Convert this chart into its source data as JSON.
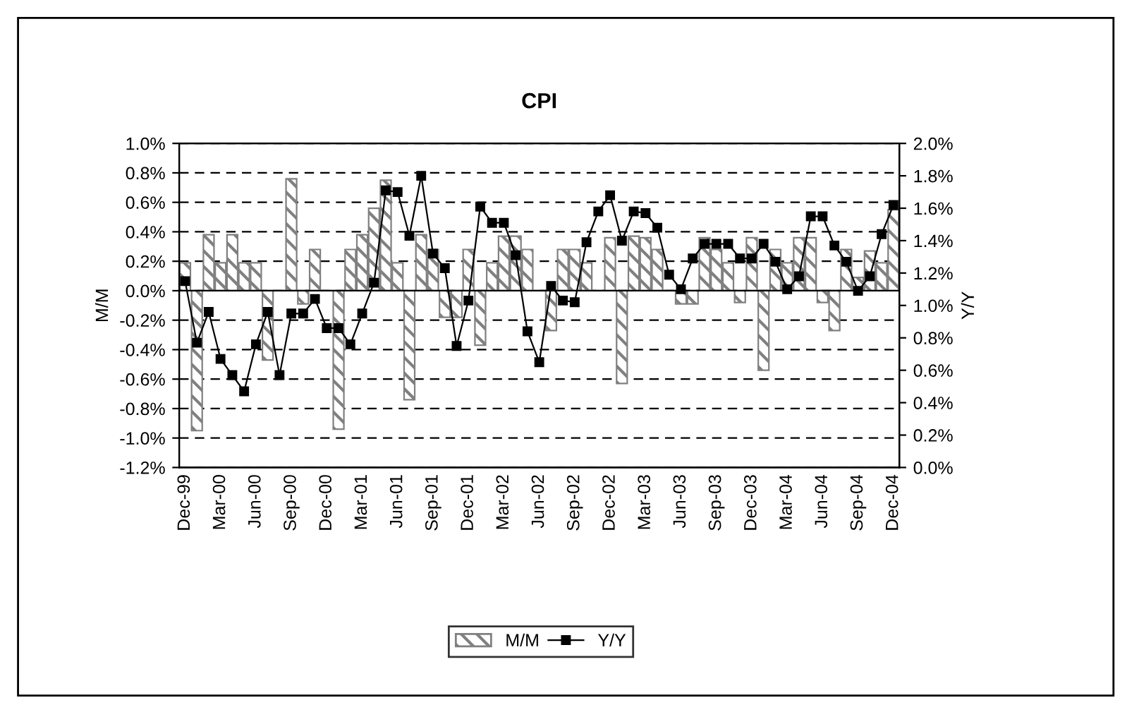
{
  "chart_data": {
    "type": "bar",
    "title": "CPI",
    "ylabel": "M/M",
    "y2label": "Y/Y",
    "categories": [
      "Dec-99",
      null,
      null,
      "Mar-00",
      null,
      null,
      "Jun-00",
      null,
      null,
      "Sep-00",
      null,
      null,
      "Dec-00",
      null,
      null,
      "Mar-01",
      null,
      null,
      "Jun-01",
      null,
      null,
      "Sep-01",
      null,
      null,
      "Dec-01",
      null,
      null,
      "Mar-02",
      null,
      null,
      "Jun-02",
      null,
      null,
      "Sep-02",
      null,
      null,
      "Dec-02",
      null,
      null,
      "Mar-03",
      null,
      null,
      "Jun-03",
      null,
      null,
      "Sep-03",
      null,
      null,
      "Dec-03",
      null,
      null,
      "Mar-04",
      null,
      null,
      "Jun-04",
      null,
      null,
      "Sep-04",
      null,
      null,
      "Dec-04"
    ],
    "series": [
      {
        "name": "M/M",
        "color": "#808080",
        "values": [
          0.19,
          -0.95,
          0.38,
          0.19,
          0.38,
          0.19,
          0.19,
          -0.47,
          0,
          0.76,
          -0.09,
          0.28,
          0,
          -0.94,
          0.28,
          0.38,
          0.56,
          0.75,
          0.19,
          -0.74,
          0.38,
          0.28,
          -0.18,
          -0.18,
          0.28,
          -0.37,
          0.19,
          0.37,
          0.37,
          0.28,
          0,
          -0.27,
          0.28,
          0.28,
          0.19,
          0,
          0.36,
          -0.63,
          0.37,
          0.36,
          0.28,
          0,
          -0.09,
          -0.09,
          0.36,
          0.28,
          0.19,
          -0.08,
          0.36,
          -0.54,
          0.28,
          0.19,
          0.36,
          0.36,
          -0.08,
          -0.27,
          0.28,
          0.09,
          0.27,
          0.19,
          0.55
        ]
      },
      {
        "name": "Y/Y",
        "type": "line",
        "axis": "y2",
        "color": "#000000",
        "marker": "square",
        "line_style": "solid",
        "values": [
          1.15,
          0.77,
          0.96,
          0.67,
          0.57,
          0.47,
          0.76,
          0.96,
          0.57,
          0.95,
          0.95,
          1.04,
          0.86,
          0.86,
          0.76,
          0.95,
          1.14,
          1.71,
          1.7,
          1.43,
          1.8,
          1.32,
          1.23,
          0.75,
          1.03,
          1.61,
          1.51,
          1.51,
          1.31,
          0.84,
          0.65,
          1.12,
          1.03,
          1.02,
          1.39,
          1.58,
          1.68,
          1.4,
          1.58,
          1.57,
          1.48,
          1.19,
          1.1,
          1.29,
          1.38,
          1.38,
          1.38,
          1.29,
          1.29,
          1.38,
          1.27,
          1.1,
          1.18,
          1.55,
          1.55,
          1.37,
          1.27,
          1.09,
          1.18,
          1.44,
          1.62
        ]
      }
    ],
    "ylim": [
      -1.2,
      1.0
    ],
    "yticks": [
      {
        "value": -1.2,
        "label": "-1.2%"
      },
      {
        "value": -1.0,
        "label": "-1.0%"
      },
      {
        "value": -0.8,
        "label": "-0.8%"
      },
      {
        "value": -0.6,
        "label": "-0.6%"
      },
      {
        "value": -0.4,
        "label": "-0.4%"
      },
      {
        "value": -0.2,
        "label": "-0.2%"
      },
      {
        "value": 0.0,
        "label": "0.0%"
      },
      {
        "value": 0.2,
        "label": "0.2%"
      },
      {
        "value": 0.4,
        "label": "0.4%"
      },
      {
        "value": 0.6,
        "label": "0.6%"
      },
      {
        "value": 0.8,
        "label": "0.8%"
      },
      {
        "value": 1.0,
        "label": "1.0%"
      }
    ],
    "y2lim": [
      0.0,
      2.0
    ],
    "y2ticks": [
      {
        "value": 0.0,
        "label": "0.0%"
      },
      {
        "value": 0.2,
        "label": "0.2%"
      },
      {
        "value": 0.4,
        "label": "0.4%"
      },
      {
        "value": 0.6,
        "label": "0.6%"
      },
      {
        "value": 0.8,
        "label": "0.8%"
      },
      {
        "value": 1.0,
        "label": "1.0%"
      },
      {
        "value": 1.2,
        "label": "1.2%"
      },
      {
        "value": 1.4,
        "label": "1.4%"
      },
      {
        "value": 1.6,
        "label": "1.6%"
      },
      {
        "value": 1.8,
        "label": "1.8%"
      },
      {
        "value": 2.0,
        "label": "2.0%"
      }
    ],
    "grid": "y",
    "legend": "bottom"
  }
}
